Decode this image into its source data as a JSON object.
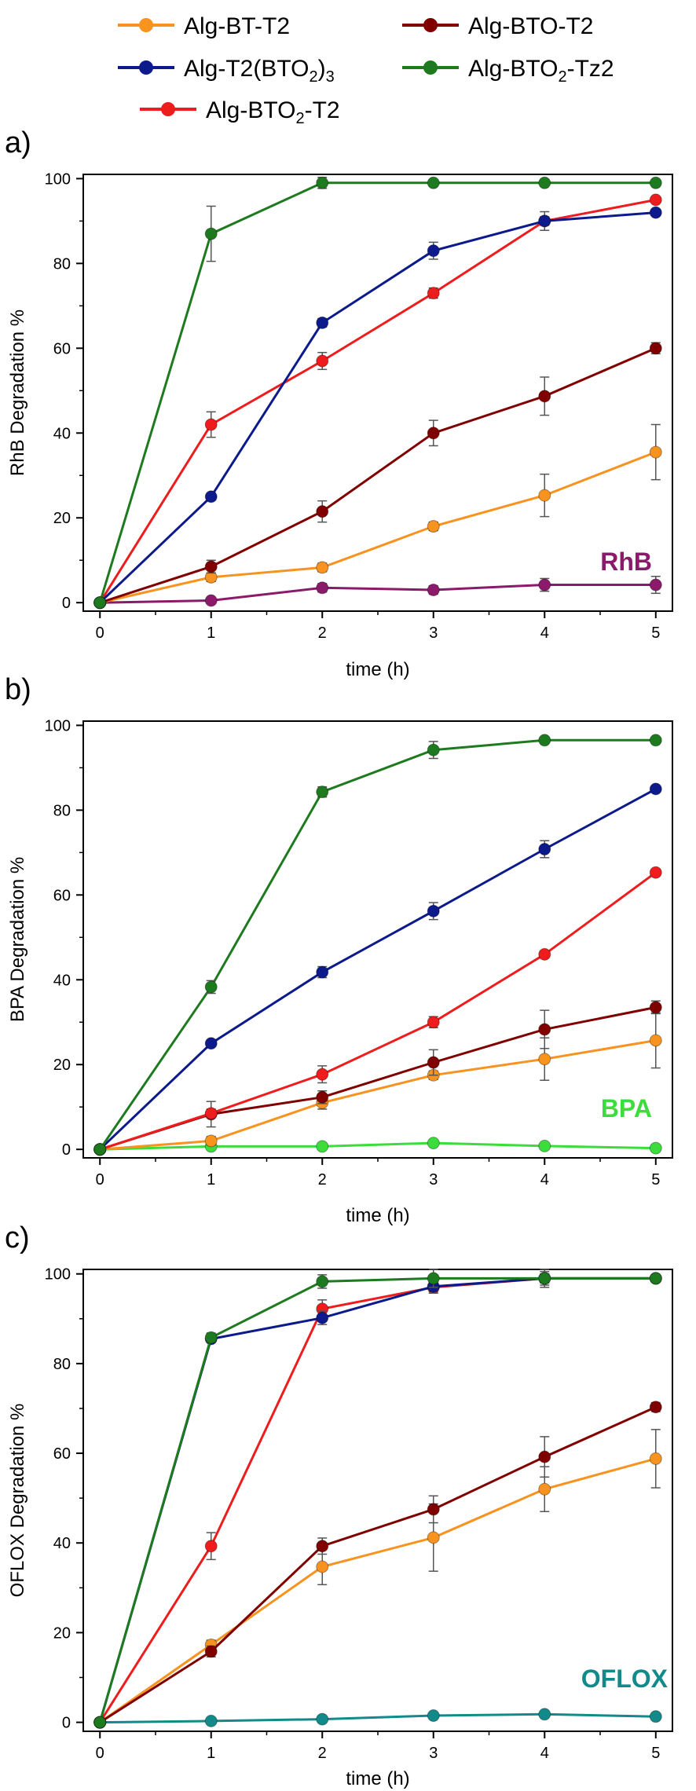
{
  "legend": {
    "entries": [
      {
        "name": "Alg-BT-T2",
        "color": "#f7931e"
      },
      {
        "name": "Alg-BTO-T2",
        "color": "#800000"
      },
      {
        "name": "Alg-T2(BTO2)3",
        "color": "#0c1a8c"
      },
      {
        "name": "Alg-BTO2-Tz2",
        "color": "#1e7a1e"
      },
      {
        "name": "Alg-BTO2-T2",
        "color": "#ee1c1c"
      }
    ]
  },
  "chart_data": [
    {
      "panel_label": "a)",
      "type": "line",
      "xlabel": "time (h)",
      "ylabel": "RhB Degradation %",
      "annotation": "RhB",
      "annotation_color": "#8b1a6b",
      "x": [
        0,
        1,
        2,
        3,
        4,
        5
      ],
      "xlim": [
        -0.15,
        5.15
      ],
      "ylim": [
        -2,
        101
      ],
      "xticks": [
        0,
        1,
        2,
        3,
        4,
        5
      ],
      "yticks": [
        0,
        20,
        40,
        60,
        80,
        100
      ],
      "series": [
        {
          "name": "RhB",
          "color": "#8b1a6b",
          "values": [
            0,
            0.5,
            3.5,
            3,
            4.2,
            4.2
          ],
          "errors": [
            0,
            0.5,
            1,
            1,
            1.5,
            2
          ]
        },
        {
          "name": "Alg-BT-T2",
          "color": "#f7931e",
          "values": [
            0,
            6,
            8.3,
            18,
            25.3,
            35.5
          ],
          "errors": [
            0,
            1,
            1,
            1,
            5,
            6.5
          ]
        },
        {
          "name": "Alg-BTO-T2",
          "color": "#800000",
          "values": [
            0,
            8.5,
            21.5,
            40,
            48.7,
            60
          ],
          "errors": [
            0,
            1.5,
            2.5,
            3,
            4.5,
            1.3
          ]
        },
        {
          "name": "Alg-BTO2-T2",
          "color": "#ee1c1c",
          "values": [
            0,
            42,
            57,
            73,
            90,
            95
          ],
          "errors": [
            0,
            3,
            2,
            1.2,
            1,
            0.5
          ]
        },
        {
          "name": "Alg-T2(BTO2)3",
          "color": "#0c1a8c",
          "values": [
            0,
            25,
            66,
            83,
            90,
            92
          ],
          "errors": [
            0,
            0.8,
            1,
            2,
            2.2,
            0.5
          ]
        },
        {
          "name": "Alg-BTO2-Tz2",
          "color": "#1e7a1e",
          "values": [
            0,
            87,
            99,
            99,
            99,
            99
          ],
          "errors": [
            0,
            6.5,
            1.3,
            0.3,
            0.3,
            0.3
          ]
        }
      ]
    },
    {
      "panel_label": "b)",
      "type": "line",
      "xlabel": "time (h)",
      "ylabel": "BPA Degradation %",
      "annotation": "BPA",
      "annotation_color": "#3ddc3d",
      "x": [
        0,
        1,
        2,
        3,
        4,
        5
      ],
      "xlim": [
        -0.15,
        5.15
      ],
      "ylim": [
        -2,
        101
      ],
      "xticks": [
        0,
        1,
        2,
        3,
        4,
        5
      ],
      "yticks": [
        0,
        20,
        40,
        60,
        80,
        100
      ],
      "series": [
        {
          "name": "BPA",
          "color": "#3ddc3d",
          "values": [
            0,
            0.7,
            0.7,
            1.5,
            0.8,
            0.3
          ],
          "errors": [
            0,
            0.3,
            0.3,
            0.3,
            0.3,
            0.3
          ]
        },
        {
          "name": "Alg-BT-T2",
          "color": "#f7931e",
          "values": [
            0,
            2,
            11,
            17.5,
            21.3,
            25.7
          ],
          "errors": [
            0,
            1,
            1.5,
            1,
            5,
            6.5
          ]
        },
        {
          "name": "Alg-BTO-T2",
          "color": "#800000",
          "values": [
            0,
            8.3,
            12.3,
            20.5,
            28.3,
            33.5
          ],
          "errors": [
            0,
            3,
            1.5,
            3,
            4.5,
            1.5
          ]
        },
        {
          "name": "Alg-BTO2-T2",
          "color": "#ee1c1c",
          "values": [
            0,
            8.5,
            17.7,
            30,
            46,
            65.3
          ],
          "errors": [
            0,
            1,
            2,
            1.3,
            0.8,
            0.5
          ]
        },
        {
          "name": "Alg-T2(BTO2)3",
          "color": "#0c1a8c",
          "values": [
            0,
            25,
            41.8,
            56.2,
            70.8,
            85
          ],
          "errors": [
            0,
            0.5,
            1.3,
            2,
            2,
            0.5
          ]
        },
        {
          "name": "Alg-BTO2-Tz2",
          "color": "#1e7a1e",
          "values": [
            0,
            38.3,
            84.3,
            94.2,
            96.5,
            96.5
          ],
          "errors": [
            0,
            1.5,
            1.2,
            2,
            0.5,
            0.5
          ]
        }
      ]
    },
    {
      "panel_label": "c)",
      "type": "line",
      "xlabel": "time (h)",
      "ylabel": "OFLOX Degradation %",
      "annotation": "OFLOX",
      "annotation_color": "#138a8a",
      "x": [
        0,
        1,
        2,
        3,
        4,
        5
      ],
      "xlim": [
        -0.15,
        5.15
      ],
      "ylim": [
        -2,
        101
      ],
      "xticks": [
        0,
        1,
        2,
        3,
        4,
        5
      ],
      "yticks": [
        0,
        20,
        40,
        60,
        80,
        100
      ],
      "series": [
        {
          "name": "OFLOX",
          "color": "#138a8a",
          "values": [
            0,
            0.3,
            0.7,
            1.5,
            1.8,
            1.3
          ],
          "errors": [
            0,
            0.3,
            0.3,
            0.3,
            0.3,
            0.3
          ]
        },
        {
          "name": "Alg-BT-T2",
          "color": "#f7931e",
          "values": [
            0,
            17.3,
            34.7,
            41.2,
            52,
            58.8
          ],
          "errors": [
            0,
            1,
            4,
            7.5,
            5,
            6.5
          ]
        },
        {
          "name": "Alg-BTO-T2",
          "color": "#800000",
          "values": [
            0,
            15.8,
            39.3,
            47.5,
            59.2,
            70.3
          ],
          "errors": [
            0,
            1.2,
            1.8,
            3,
            4.5,
            1
          ]
        },
        {
          "name": "Alg-BTO2-T2",
          "color": "#ee1c1c",
          "values": [
            0,
            39.3,
            92.2,
            97,
            99,
            99
          ],
          "errors": [
            0,
            3,
            2,
            1,
            1,
            0.5
          ]
        },
        {
          "name": "Alg-T2(BTO2)3",
          "color": "#0c1a8c",
          "values": [
            0,
            85.5,
            90.2,
            97.2,
            99,
            99
          ],
          "errors": [
            0,
            0.8,
            1.5,
            1.5,
            1.5,
            0.5
          ]
        },
        {
          "name": "Alg-BTO2-Tz2",
          "color": "#1e7a1e",
          "values": [
            0,
            85.8,
            98.3,
            99,
            99,
            99
          ],
          "errors": [
            0,
            1,
            1.5,
            2,
            2,
            0.5
          ]
        }
      ]
    }
  ]
}
